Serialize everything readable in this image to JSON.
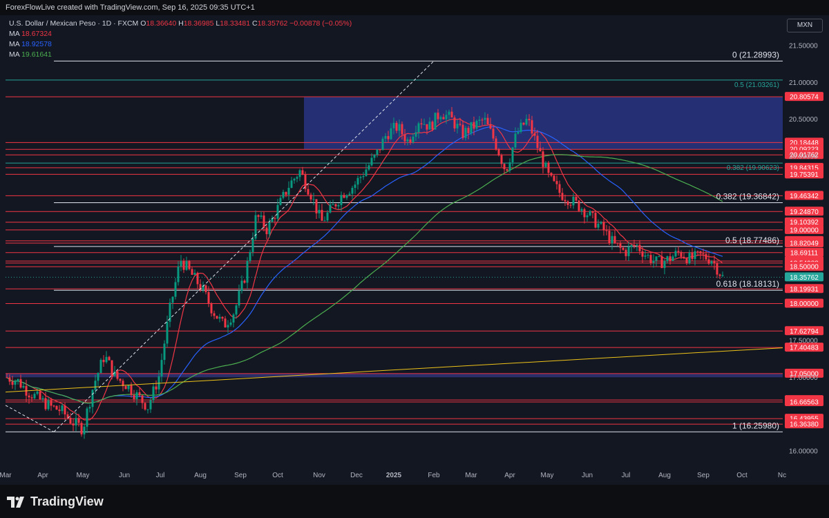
{
  "header": {
    "credit": "ForexFlowLive created with TradingView.com, Sep 16, 2025 09:35 UTC+1"
  },
  "legend": {
    "symbol": "U.S. Dollar / Mexican Peso · 1D · FXCM",
    "o_label": "O",
    "o": "18.36640",
    "h_label": "H",
    "h": "18.36985",
    "l_label": "L",
    "l": "18.33481",
    "c_label": "C",
    "c": "18.35762",
    "change": "−0.00878 (−0.05%)",
    "ma1_label": "MA",
    "ma1": "18.67324",
    "ma1_color": "#f23645",
    "ma2_label": "MA",
    "ma2": "18.92578",
    "ma2_color": "#2962ff",
    "ma3_label": "MA",
    "ma3": "19.61641",
    "ma3_color": "#4caf50"
  },
  "currency_button": "MXN",
  "brand": "TradingView",
  "colors": {
    "background": "#131722",
    "up": "#089981",
    "down": "#f23645",
    "level_red": "#f23645",
    "level_white": "#d1d4dc",
    "level_blue": "#2962ff",
    "level_cyan": "#26a69a",
    "trendline_yellow": "#f0c419",
    "zone_fill": "#2b3a8f"
  },
  "chart_data": {
    "type": "candlestick",
    "symbol": "USDMXN",
    "y_axis_ticks": [
      "21.50000",
      "21.00000",
      "20.50000",
      "20.00000",
      "17.50000",
      "17.00000",
      "16.00000"
    ],
    "x_axis_ticks": [
      "Mar",
      "Apr",
      "May",
      "Jun",
      "Jul",
      "Aug",
      "Sep",
      "Oct",
      "Nov",
      "Dec",
      "2025",
      "Feb",
      "Mar",
      "Apr",
      "May",
      "Jun",
      "Jul",
      "Aug",
      "Sep",
      "Oct",
      "Nc"
    ],
    "ylim": [
      15.8,
      21.7
    ],
    "horizontal_levels": [
      {
        "price": 20.80574,
        "label": "20.80574",
        "color": "red"
      },
      {
        "price": 20.18448,
        "label": "20.18448",
        "color": "red"
      },
      {
        "price": 20.09223,
        "label": "20.09223",
        "color": "red"
      },
      {
        "price": 20.01762,
        "label": "20.01762",
        "color": "red"
      },
      {
        "price": 19.84315,
        "label": "19.84315",
        "color": "red"
      },
      {
        "price": 19.75391,
        "label": "19.75391",
        "color": "red"
      },
      {
        "price": 19.46342,
        "label": "19.46342",
        "color": "red"
      },
      {
        "price": 19.2487,
        "label": "19.24870",
        "color": "red"
      },
      {
        "price": 19.10392,
        "label": "19.10392",
        "color": "red"
      },
      {
        "price": 19.0,
        "label": "19.00000",
        "color": "red"
      },
      {
        "price": 18.85115,
        "label": "18.85115",
        "color": "red"
      },
      {
        "price": 18.82049,
        "label": "18.82049",
        "color": "red"
      },
      {
        "price": 18.69111,
        "label": "18.69111",
        "color": "red"
      },
      {
        "price": 18.57707,
        "label": "18.57707",
        "color": "red"
      },
      {
        "price": 18.54988,
        "label": "18.54988",
        "color": "red"
      },
      {
        "price": 18.5,
        "label": "18.50000",
        "color": "red"
      },
      {
        "price": 18.19931,
        "label": "18.19931",
        "color": "red"
      },
      {
        "price": 18.0,
        "label": "18.00000",
        "color": "red"
      },
      {
        "price": 17.62794,
        "label": "17.62794",
        "color": "red"
      },
      {
        "price": 17.40483,
        "label": "17.40483",
        "color": "red"
      },
      {
        "price": 17.05,
        "label": "17.05000",
        "color": "red"
      },
      {
        "price": 16.69176,
        "label": "16.69176",
        "color": "red"
      },
      {
        "price": 16.66563,
        "label": "16.66563",
        "color": "red"
      },
      {
        "price": 16.43955,
        "label": "16.43955",
        "color": "red"
      },
      {
        "price": 16.3638,
        "label": "16.36380",
        "color": "red"
      }
    ],
    "current_price": {
      "price": 18.35762,
      "label": "18.35762"
    },
    "fibonacci_large": [
      {
        "price": 21.28993,
        "label": "0 (21.28993)"
      },
      {
        "price": 19.36842,
        "label": "0.382 (19.36842)"
      },
      {
        "price": 18.77486,
        "label": "0.5 (18.77486)"
      },
      {
        "price": 18.18131,
        "label": "0.618 (18.18131)"
      },
      {
        "price": 16.2598,
        "label": "1 (16.25980)"
      }
    ],
    "fibonacci_small": [
      {
        "price": 21.03261,
        "label": "0.5 (21.03261)"
      },
      {
        "price": 19.90623,
        "label": "0.382 (19.90623)"
      }
    ],
    "resistance_zone": {
      "from_price": 20.09,
      "to_price": 20.8
    },
    "support_zone": {
      "from_price": 17.0,
      "to_price": 17.05
    },
    "ohlc_series_approx": [
      [
        0,
        17.0
      ],
      [
        2,
        16.95
      ],
      [
        4,
        16.8
      ],
      [
        6,
        16.7
      ],
      [
        8,
        16.6
      ],
      [
        10,
        16.55
      ],
      [
        12,
        16.4
      ],
      [
        14,
        16.3
      ],
      [
        16,
        16.9
      ],
      [
        18,
        17.3
      ],
      [
        20,
        17.0
      ],
      [
        22,
        16.9
      ],
      [
        24,
        16.75
      ],
      [
        26,
        16.6
      ],
      [
        28,
        17.0
      ],
      [
        30,
        17.9
      ],
      [
        32,
        18.6
      ],
      [
        34,
        18.4
      ],
      [
        36,
        18.2
      ],
      [
        38,
        17.9
      ],
      [
        40,
        17.7
      ],
      [
        42,
        17.9
      ],
      [
        44,
        18.4
      ],
      [
        46,
        19.2
      ],
      [
        48,
        19.0
      ],
      [
        50,
        19.3
      ],
      [
        52,
        19.6
      ],
      [
        54,
        19.8
      ],
      [
        56,
        19.5
      ],
      [
        58,
        19.1
      ],
      [
        60,
        19.3
      ],
      [
        62,
        19.5
      ],
      [
        64,
        19.6
      ],
      [
        66,
        19.8
      ],
      [
        68,
        20.0
      ],
      [
        70,
        20.3
      ],
      [
        72,
        20.4
      ],
      [
        74,
        20.2
      ],
      [
        76,
        20.5
      ],
      [
        78,
        20.4
      ],
      [
        80,
        20.6
      ],
      [
        82,
        20.5
      ],
      [
        84,
        20.3
      ],
      [
        86,
        20.4
      ],
      [
        88,
        20.5
      ],
      [
        90,
        20.2
      ],
      [
        92,
        19.8
      ],
      [
        94,
        20.3
      ],
      [
        96,
        20.5
      ],
      [
        98,
        20.1
      ],
      [
        100,
        19.7
      ],
      [
        102,
        19.5
      ],
      [
        104,
        19.4
      ],
      [
        106,
        19.3
      ],
      [
        108,
        19.15
      ],
      [
        110,
        19.0
      ],
      [
        112,
        18.8
      ],
      [
        114,
        18.7
      ],
      [
        116,
        18.8
      ],
      [
        118,
        18.65
      ],
      [
        120,
        18.55
      ],
      [
        122,
        18.6
      ],
      [
        124,
        18.7
      ],
      [
        126,
        18.6
      ],
      [
        128,
        18.65
      ],
      [
        130,
        18.6
      ],
      [
        132,
        18.36
      ]
    ],
    "moving_averages": [
      {
        "name": "MA",
        "value": "18.67324",
        "color": "red"
      },
      {
        "name": "MA",
        "value": "18.92578",
        "color": "blue"
      },
      {
        "name": "MA",
        "value": "19.61641",
        "color": "green"
      }
    ],
    "grid": false
  }
}
